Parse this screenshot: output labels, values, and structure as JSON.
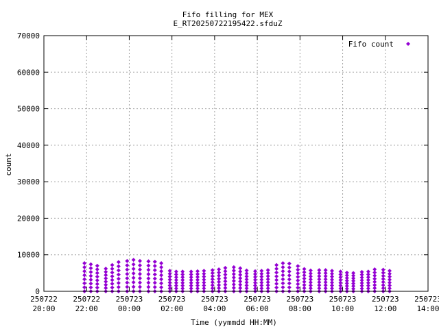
{
  "chart_data": {
    "type": "scatter",
    "title": "Fifo filling for MEX",
    "subtitle": "E_RT20250722195422.sfduZ",
    "xlabel": "Time (yymmdd HH:MM)",
    "ylabel": "count",
    "x_ticks": [
      {
        "date": "250722",
        "time": "20:00"
      },
      {
        "date": "250722",
        "time": "22:00"
      },
      {
        "date": "250723",
        "time": "00:00"
      },
      {
        "date": "250723",
        "time": "02:00"
      },
      {
        "date": "250723",
        "time": "04:00"
      },
      {
        "date": "250723",
        "time": "06:00"
      },
      {
        "date": "250723",
        "time": "08:00"
      },
      {
        "date": "250723",
        "time": "10:00"
      },
      {
        "date": "250723",
        "time": "12:00"
      },
      {
        "date": "250723",
        "time": "14:00"
      }
    ],
    "y_ticks": [
      "0",
      "10000",
      "20000",
      "30000",
      "40000",
      "50000",
      "60000",
      "70000"
    ],
    "xlim_hours": [
      20,
      38
    ],
    "ylim": [
      0,
      70000
    ],
    "grid": true,
    "legend_position": "top-right",
    "series": [
      {
        "name": "Fifo count",
        "color": "#9400d3",
        "x_hours": [
          21.9,
          22.2,
          22.5,
          22.9,
          23.2,
          23.5,
          23.9,
          24.2,
          24.5,
          24.9,
          25.2,
          25.5,
          25.9,
          26.2,
          26.5,
          26.9,
          27.2,
          27.5,
          27.9,
          28.2,
          28.5,
          28.9,
          29.2,
          29.5,
          29.9,
          30.2,
          30.5,
          30.9,
          31.2,
          31.5,
          31.9,
          32.2,
          32.5,
          32.9,
          33.2,
          33.5,
          33.9,
          34.2,
          34.5,
          34.9,
          35.2,
          35.5,
          35.9,
          36.2
        ],
        "peak_counts": [
          7700,
          7400,
          7000,
          6200,
          7200,
          8000,
          8300,
          8600,
          8300,
          8200,
          8100,
          7700,
          5600,
          5400,
          5400,
          5400,
          5500,
          5600,
          5800,
          6000,
          6400,
          6600,
          6300,
          5700,
          5500,
          5600,
          5800,
          7200,
          7700,
          7600,
          6900,
          6100,
          5700,
          5800,
          5800,
          5600,
          5400,
          5100,
          5000,
          5300,
          5400,
          6000,
          5900,
          5600
        ],
        "levels_per_peak": 7,
        "baseline_count": 0
      }
    ]
  }
}
